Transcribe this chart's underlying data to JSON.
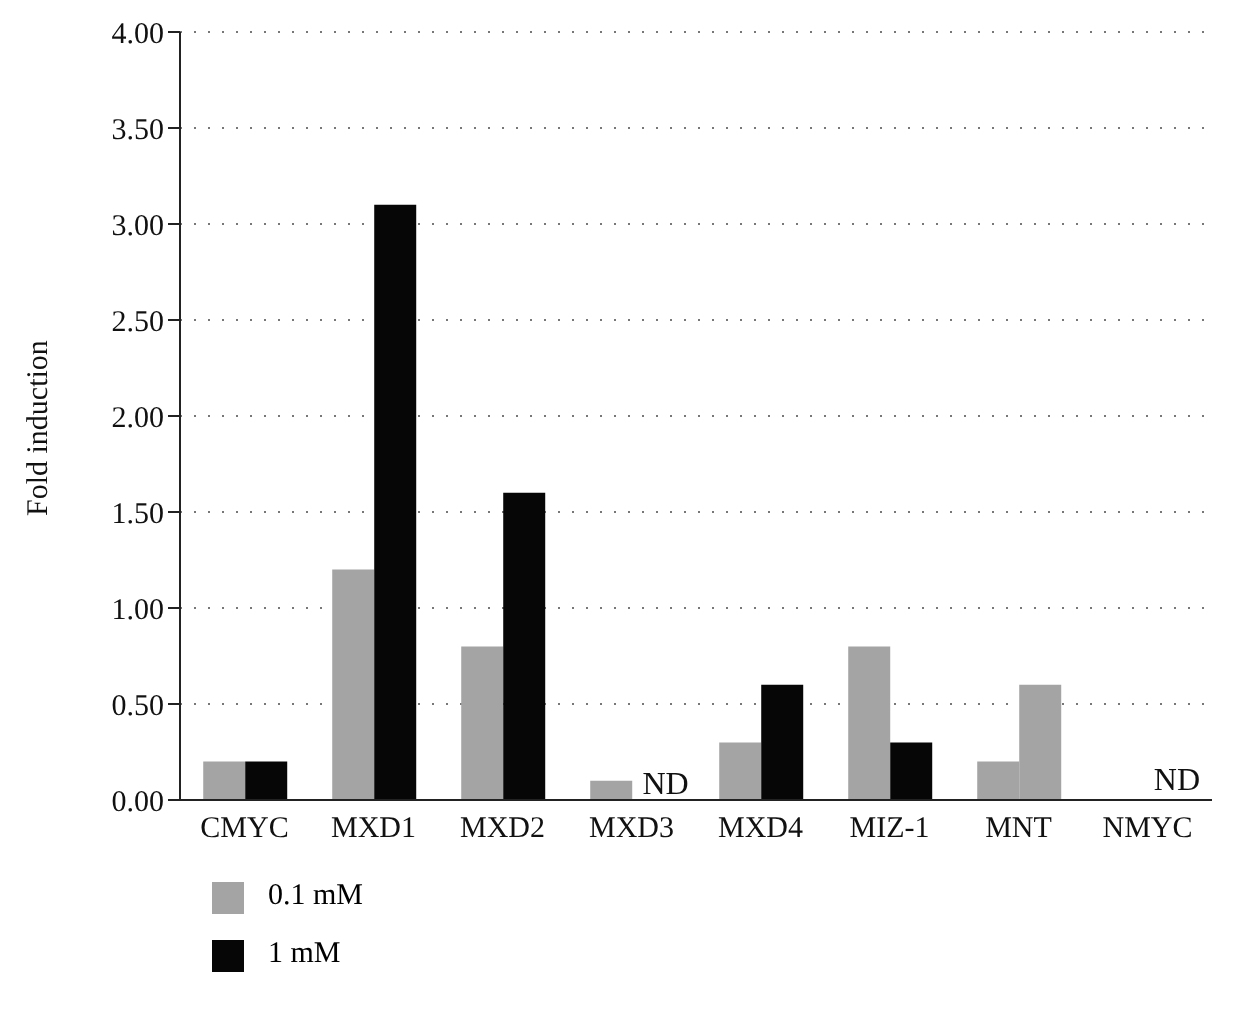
{
  "chart_data": {
    "type": "bar",
    "ylabel": "Fold induction",
    "categories": [
      "CMYC",
      "MXD1",
      "MXD2",
      "MXD3",
      "MXD4",
      "MIZ-1",
      "MNT",
      "NMYC"
    ],
    "series": [
      {
        "name": "0.1 mM",
        "color": "#a3a4a3",
        "values": [
          0.2,
          1.2,
          0.8,
          0.1,
          0.3,
          0.8,
          0.2,
          null
        ]
      },
      {
        "name": "1 mM",
        "color": "#060606",
        "colors": [
          "#060606",
          "#060606",
          "#060606",
          "#060606",
          "#060606",
          "#060606",
          "#a3a4a3",
          "#060606"
        ],
        "values": [
          0.2,
          3.1,
          1.6,
          null,
          0.6,
          0.3,
          0.6,
          null
        ]
      }
    ],
    "ylim": [
      0,
      4
    ],
    "yticks": [
      {
        "value": 0,
        "label": "0.00"
      },
      {
        "value": 0.5,
        "label": "0.50"
      },
      {
        "value": 1,
        "label": "1.00"
      },
      {
        "value": 1.5,
        "label": "1.50"
      },
      {
        "value": 2,
        "label": "2.00"
      },
      {
        "value": 2.5,
        "label": "2.50"
      },
      {
        "value": 3,
        "label": "3.00"
      },
      {
        "value": 3.5,
        "label": "3.50"
      },
      {
        "value": 4,
        "label": "4.00"
      }
    ],
    "grid": "y",
    "legend": "bottom left",
    "annotations": [
      {
        "text": "ND",
        "x": "MXD3",
        "y": 0
      },
      "ND"
    ]
  }
}
